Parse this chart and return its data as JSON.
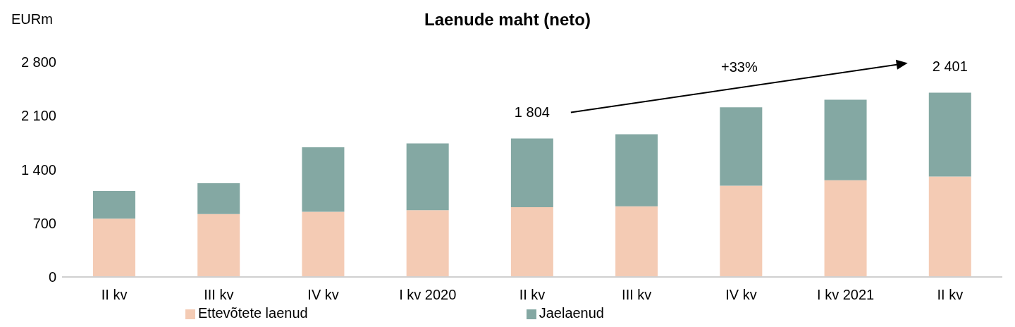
{
  "chart_data": {
    "type": "bar",
    "title": "Laenude maht (neto)",
    "ylabel": "EURm",
    "stacked": true,
    "categories": [
      "II kv",
      "III kv",
      "IV kv",
      "I kv 2020",
      "II kv",
      "III kv",
      "IV kv",
      "I kv 2021",
      "II kv"
    ],
    "series": [
      {
        "name": "Ettevõtete laenud",
        "color": "#f4cbb4",
        "values": [
          760,
          820,
          850,
          870,
          908,
          920,
          1190,
          1260,
          1309
        ]
      },
      {
        "name": "Jaelaenud",
        "color": "#84a8a3",
        "values": [
          360,
          400,
          840,
          870,
          896,
          940,
          1020,
          1050,
          1092
        ]
      }
    ],
    "totals": [
      null,
      null,
      null,
      null,
      "1 804",
      null,
      null,
      null,
      "2 401"
    ],
    "annotations": [
      "+33%"
    ],
    "ylim": [
      0,
      2800
    ],
    "yticks": [
      0,
      700,
      {
        "value": 1400,
        "label": "1 400"
      },
      {
        "value": 2100,
        "label": "2 100"
      },
      {
        "value": 2800,
        "label": "2 800"
      }
    ],
    "grid": false,
    "legend": "bottom"
  }
}
